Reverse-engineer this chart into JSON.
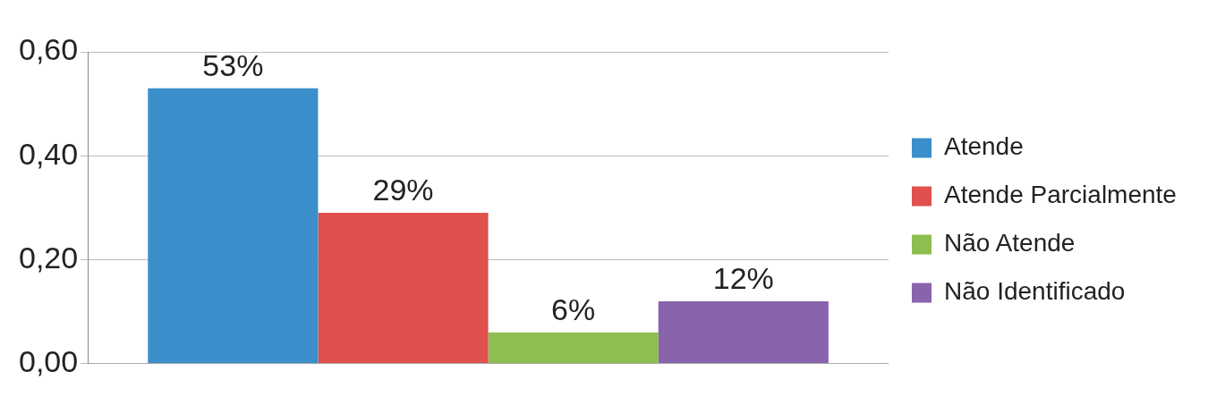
{
  "chart_data": {
    "type": "bar",
    "categories": [
      null
    ],
    "series": [
      {
        "name": "Atende",
        "color": "#3a8fcb",
        "values": [
          0.53
        ],
        "value_labels": [
          "53%"
        ]
      },
      {
        "name": "Atende Parcialmente",
        "color": "#e0504d",
        "values": [
          0.29
        ],
        "value_labels": [
          "29%"
        ]
      },
      {
        "name": "Não Atende",
        "color": "#8dbe4f",
        "values": [
          0.06
        ],
        "value_labels": [
          "6%"
        ]
      },
      {
        "name": "Não Identificado",
        "color": "#8a63ad",
        "values": [
          0.12
        ],
        "value_labels": [
          "12%"
        ]
      }
    ],
    "ylim": [
      0,
      0.6
    ],
    "yticks": [
      {
        "value": 0,
        "label": "0,00"
      },
      {
        "value": 0.2,
        "label": "0,20"
      },
      {
        "value": 0.4,
        "label": "0,40"
      },
      {
        "value": 0.6,
        "label": "0,60"
      }
    ],
    "grid": "y",
    "legend": "right"
  }
}
